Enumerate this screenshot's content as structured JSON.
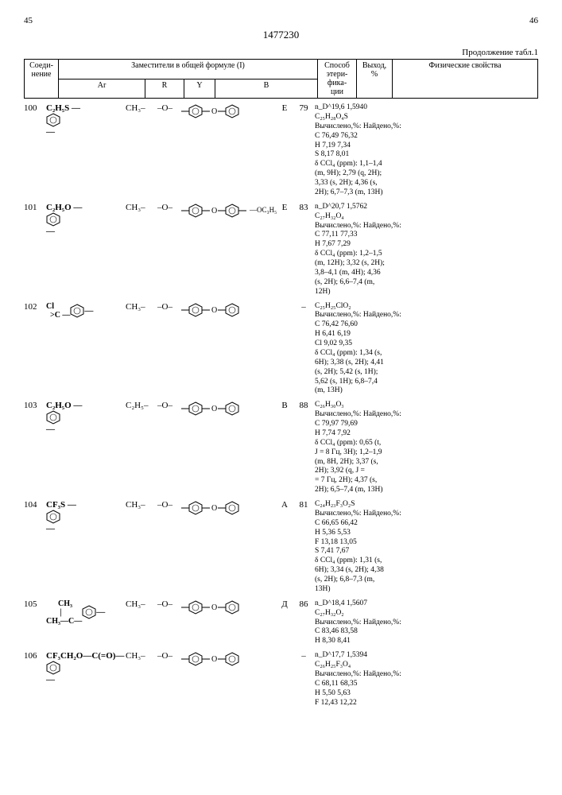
{
  "page_left": "45",
  "patent_no": "1477230",
  "page_right": "46",
  "continuation": "Продолжение табл.1",
  "headers": {
    "compound": "Соеди-\nнение",
    "substituents": "Заместители в общей формуле (I)",
    "ar": "Ar",
    "r": "R",
    "y": "Y",
    "b": "B",
    "method": "Способ\nэтери-\nфика-\nции",
    "yield": "Выход,\n%",
    "phys": "Физические свойства"
  },
  "rows": [
    {
      "no": "100",
      "ar": "C₂H₅S —⌬—",
      "r": "CH₃–",
      "y": "–O–",
      "b": "diphenyl_ether",
      "method": "Е",
      "yield": "79",
      "phys": "n_D^19,6  1,5940\nC₂₅H₂₈O₄S\nВычислено,%: Найдено,%:\nC  76,49       76,32\nH   7,19        7,34\nS   8,17        8,01\nδ CCl₄ (ppm): 1,1–1,4\n(m, 9H); 2,79 (q, 2H);\n3,33 (s, 2H); 4,36 (s,\n2H); 6,7–7,3 (m, 13H)"
    },
    {
      "no": "101",
      "ar": "C₂H₅O —⌬—",
      "r": "CH₃–",
      "y": "–O–",
      "b": "diphenyl_ether_oc3h5",
      "method": "Е",
      "yield": "83",
      "phys": "n_D^20,7  1,5762\nC₂₇H₃₂O₄\nВычислено,%: Найдено,%:\nC  77,11       77,33\nH   7,67        7,29\nδ CCl₄ (ppm): 1,2–1,5\n(m, 12H); 3,32 (s, 2H);\n3,8–4,1 (m, 4H); 4,36\n(s, 2H); 6,6–7,4 (m,\n12H)"
    },
    {
      "no": "102",
      "ar_struct": "Cl\n  >C —⌬—\nCH₂",
      "r": "CH₃–",
      "y": "–O–",
      "b": "diphenyl_ether",
      "method": "",
      "yield": "–",
      "phys": "C₂₅H₂₅ClO₂\nВычислено,%: Найдено,%:\nC  76,42       76,60\nH   6,41        6,19\nCl  9,02        9,35\nδ CCl₄ (ppm): 1,34 (s,\n6H); 3,38 (s, 2H); 4,41\n(s, 2H); 5,42 (s, 1H);\n5,62 (s, 1H); 6,8–7,4\n(m, 13H)"
    },
    {
      "no": "103",
      "ar": "C₂H₅O —⌬—",
      "r": "C₂H₅–",
      "y": "–O–",
      "b": "diphenyl_ether",
      "method": "В",
      "yield": "88",
      "phys": "C₂₆H₃₀O₃\nВычислено,%: Найдено,%:\nC  79,97       79,69\nH   7,74        7,92\nδ CCl₄ (ppm): 0,65 (t,\nJ = 8 Гц, 3H); 1,2–1,9\n(m, 8H, 2H); 3,37 (s,\n2H); 3,92 (q, J =\n= 7 Гц, 2H); 4,37 (s,\n2H); 6,5–7,4 (m, 13H)"
    },
    {
      "no": "104",
      "ar": "CF₃S —⌬—",
      "r": "CH₃–",
      "y": "–O–",
      "b": "diphenyl_ether",
      "method": "А",
      "yield": "81",
      "phys": "C₂₄H₂₃F₃O₂S\nВычислено,%: Найдено,%:\nC  66,65       66,42\nH   5,36        5,53\nF  13,18       13,05\nS   7,41        7,67\nδ CCl₄ (ppm): 1,31 (s,\n6H); 3,34 (s, 2H); 4,38\n(s, 2H); 6,8–7,3 (m,\n13H)"
    },
    {
      "no": "105",
      "ar_struct": "      CH₃\n       |\nCH₃—C—⌬—\n       |\n      CH₃",
      "r": "CH₃–",
      "y": "–O–",
      "b": "diphenyl_ether",
      "method": "Д",
      "yield": "86",
      "phys": "n_D^18,4  1,5607\nC₂₇H₃₂O₂\nВычислено,%: Найдено,%:\nC  83,46       83,58\nH   8,30        8,41"
    },
    {
      "no": "106",
      "ar": "CF₃CH₂O—C(=O)—⌬—",
      "ar_sub": "O",
      "r": "CH₃–",
      "y": "–O–",
      "b": "diphenyl_ether",
      "method": "",
      "yield": "–",
      "phys": "n_D^17,7  1,5394\nC₂₆H₂₅F₃O₄\nВычислено,%: Найдено,%:\nC  68,11       68,35\nH   5,50        5,63\nF  12,43       12,22"
    }
  ]
}
